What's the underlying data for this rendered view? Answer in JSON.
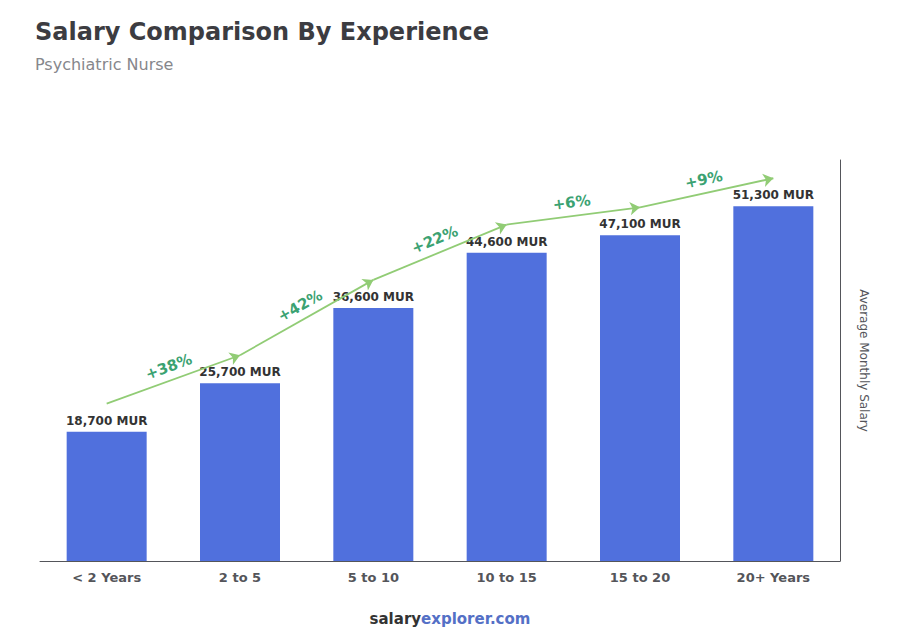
{
  "chart_data": {
    "type": "bar",
    "title": "Salary Comparison By Experience",
    "subtitle": "Psychiatric Nurse",
    "ylabel": "Average Monthly Salary",
    "categories": [
      "< 2 Years",
      "2 to 5",
      "5 to 10",
      "10 to 15",
      "15 to 20",
      "20+ Years"
    ],
    "values": [
      18700,
      25700,
      36600,
      44600,
      47100,
      51300
    ],
    "value_labels": [
      "18,700 MUR",
      "25,700 MUR",
      "36,600 MUR",
      "44,600 MUR",
      "47,100 MUR",
      "51,300 MUR"
    ],
    "data_labels": true,
    "annotations": [
      {
        "from": "< 2 Years",
        "to": "2 to 5",
        "text": "+38%"
      },
      {
        "from": "2 to 5",
        "to": "5 to 10",
        "text": "+42%"
      },
      {
        "from": "5 to 10",
        "to": "10 to 15",
        "text": "+22%"
      },
      {
        "from": "10 to 15",
        "to": "15 to 20",
        "text": "+6%"
      },
      {
        "from": "15 to 20",
        "to": "20+ Years",
        "text": "+9%"
      }
    ],
    "footer": [
      "salary",
      "explorer.com"
    ],
    "ylim": [
      0,
      58000
    ],
    "yticks": [],
    "tick_labels": "x",
    "grid": false
  }
}
